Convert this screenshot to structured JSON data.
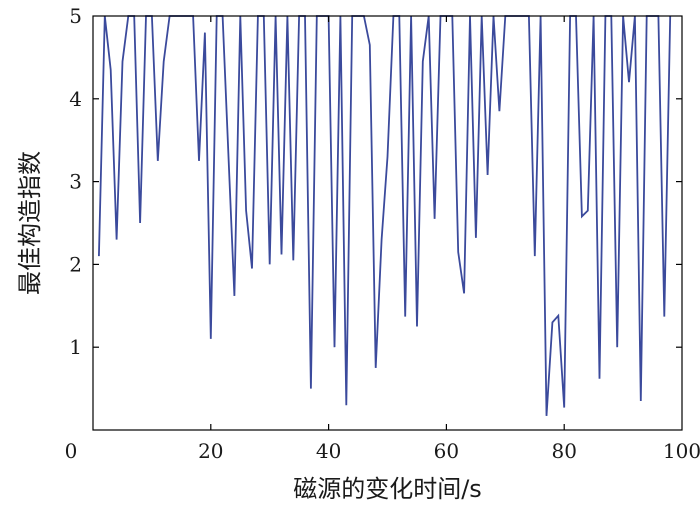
{
  "chart_data": {
    "type": "line",
    "title": "",
    "xlabel": "磁源的变化时间/s",
    "ylabel": "最佳构造指数",
    "xlim": [
      0,
      100
    ],
    "ylim": [
      0,
      5
    ],
    "grid": false,
    "x_ticks": [
      "0",
      "20",
      "40",
      "60",
      "80",
      "100"
    ],
    "y_ticks": [
      "1",
      "2",
      "3",
      "4",
      "5"
    ],
    "series": [
      {
        "color": "#3b4a9c",
        "x": [
          1,
          2,
          3,
          4,
          5,
          6,
          7,
          8,
          9,
          10,
          11,
          12,
          13,
          14,
          15,
          16,
          17,
          18,
          19,
          20,
          21,
          22,
          23,
          24,
          25,
          26,
          27,
          28,
          29,
          30,
          31,
          32,
          33,
          34,
          35,
          36,
          37,
          38,
          39,
          40,
          41,
          42,
          43,
          44,
          45,
          46,
          47,
          48,
          49,
          50,
          51,
          52,
          53,
          54,
          55,
          56,
          57,
          58,
          59,
          60,
          61,
          62,
          63,
          64,
          65,
          66,
          67,
          68,
          69,
          70,
          71,
          72,
          73,
          74,
          75,
          76,
          77,
          78,
          79,
          80,
          81,
          82,
          83,
          84,
          85,
          86,
          87,
          88,
          89,
          90,
          91,
          92,
          93,
          94,
          95,
          96,
          97,
          98
        ],
        "y": [
          2.1,
          5.0,
          4.35,
          2.3,
          4.45,
          5.0,
          5.0,
          2.5,
          5.0,
          5.0,
          3.25,
          4.45,
          5.0,
          5.0,
          5.0,
          5.0,
          5.0,
          3.25,
          4.8,
          1.1,
          5.0,
          5.0,
          3.3,
          1.62,
          5.0,
          2.65,
          1.95,
          5.0,
          5.0,
          2.0,
          5.0,
          2.12,
          5.0,
          2.05,
          5.0,
          5.0,
          0.5,
          5.0,
          5.0,
          5.0,
          1.0,
          5.0,
          0.3,
          5.0,
          5.0,
          5.0,
          4.65,
          0.75,
          2.3,
          3.3,
          5.0,
          5.0,
          1.37,
          5.0,
          1.25,
          4.45,
          5.0,
          2.55,
          5.0,
          5.0,
          5.0,
          2.15,
          1.65,
          5.0,
          2.32,
          5.0,
          3.08,
          5.0,
          3.85,
          5.0,
          5.0,
          5.0,
          5.0,
          5.0,
          2.1,
          5.0,
          0.17,
          1.3,
          1.38,
          0.27,
          5.0,
          5.0,
          2.58,
          2.65,
          5.0,
          0.62,
          5.0,
          5.0,
          1.0,
          5.0,
          4.2,
          5.0,
          0.35,
          5.0,
          5.0,
          5.0,
          1.37,
          5.0
        ]
      }
    ]
  }
}
